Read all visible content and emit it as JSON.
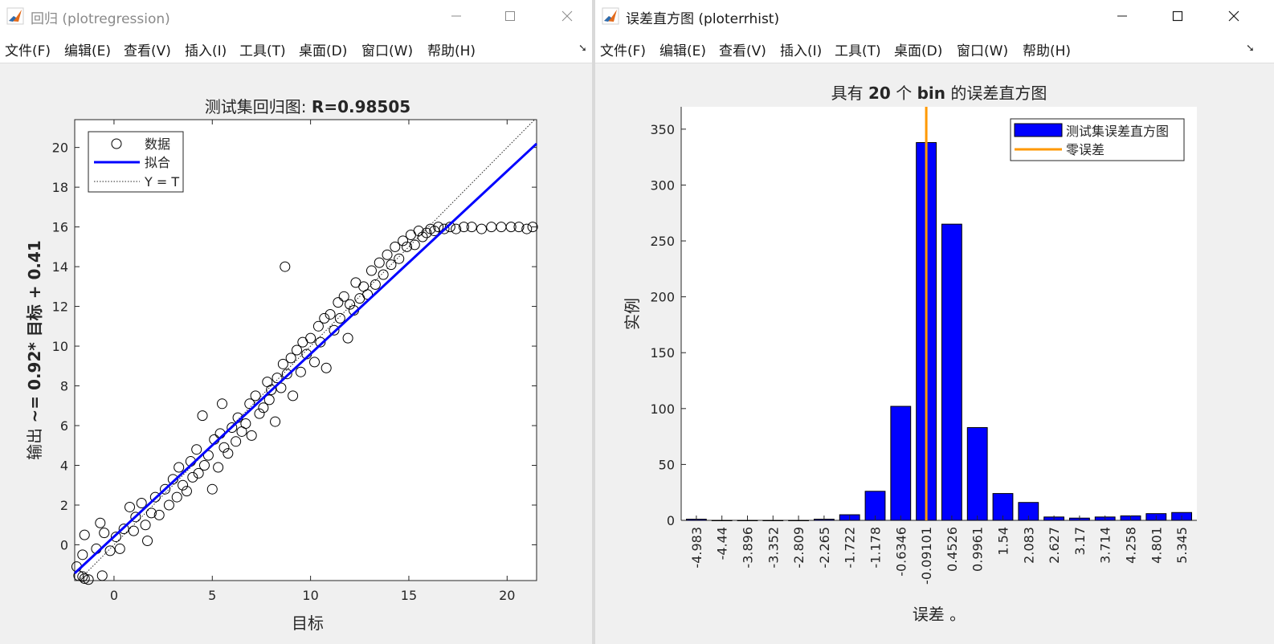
{
  "left_window": {
    "title": "回归 (plotregression)",
    "menu": [
      "文件(F)",
      "编辑(E)",
      "查看(V)",
      "插入(I)",
      "工具(T)",
      "桌面(D)",
      "窗口(W)",
      "帮助(H)"
    ],
    "window_controls": [
      "minimize-icon",
      "maximize-icon",
      "close-icon"
    ],
    "chart_data": {
      "type": "scatter",
      "title_prefix": "测试集回归图: ",
      "title_value": "R=0.98505",
      "xlabel": "目标",
      "ylabel_prefix": "输出 ",
      "ylabel_value": "~= 0.92* 目标 + 0.41",
      "xlim": [
        -2,
        21.5
      ],
      "ylim": [
        -1.8,
        21.4
      ],
      "xticks": [
        0,
        5,
        10,
        15,
        20
      ],
      "yticks": [
        0,
        2,
        4,
        6,
        8,
        10,
        12,
        14,
        16,
        18,
        20
      ],
      "legend": {
        "position": "top-left",
        "entries": [
          "数据",
          "拟合",
          "Y = T"
        ]
      },
      "fit": {
        "slope": 0.92,
        "intercept": 0.41
      },
      "series_style": {
        "data_marker": "circle",
        "fit_color": "#0000ff",
        "identity_color": "#262626"
      },
      "points": [
        [
          -1.9,
          -1.1
        ],
        [
          -1.8,
          -1.55
        ],
        [
          -1.6,
          -1.6
        ],
        [
          -1.5,
          -1.7
        ],
        [
          -1.3,
          -1.75
        ],
        [
          -0.6,
          -1.55
        ],
        [
          -1.6,
          -0.5
        ],
        [
          -1.5,
          0.5
        ],
        [
          -0.7,
          1.1
        ],
        [
          -0.5,
          0.6
        ],
        [
          -0.9,
          -0.2
        ],
        [
          -0.2,
          -0.3
        ],
        [
          0.1,
          0.4
        ],
        [
          0.3,
          -0.2
        ],
        [
          0.5,
          0.8
        ],
        [
          0.8,
          1.9
        ],
        [
          1.0,
          0.7
        ],
        [
          1.1,
          1.4
        ],
        [
          1.4,
          2.1
        ],
        [
          1.6,
          1.0
        ],
        [
          1.7,
          0.2
        ],
        [
          1.9,
          1.6
        ],
        [
          2.1,
          2.4
        ],
        [
          2.3,
          1.5
        ],
        [
          2.6,
          2.8
        ],
        [
          2.8,
          2.0
        ],
        [
          3.0,
          3.3
        ],
        [
          3.2,
          2.4
        ],
        [
          3.3,
          3.9
        ],
        [
          3.5,
          3.0
        ],
        [
          3.7,
          2.7
        ],
        [
          3.9,
          4.2
        ],
        [
          4.0,
          3.4
        ],
        [
          4.2,
          4.8
        ],
        [
          4.3,
          3.6
        ],
        [
          4.5,
          6.5
        ],
        [
          4.6,
          4.0
        ],
        [
          4.8,
          4.5
        ],
        [
          5.0,
          2.8
        ],
        [
          5.1,
          5.3
        ],
        [
          5.3,
          3.9
        ],
        [
          5.4,
          5.6
        ],
        [
          5.5,
          7.1
        ],
        [
          5.6,
          4.9
        ],
        [
          5.8,
          4.6
        ],
        [
          6.0,
          5.9
        ],
        [
          6.2,
          5.2
        ],
        [
          6.3,
          6.4
        ],
        [
          6.5,
          5.7
        ],
        [
          6.7,
          6.1
        ],
        [
          6.9,
          7.1
        ],
        [
          7.0,
          5.5
        ],
        [
          7.2,
          7.5
        ],
        [
          7.4,
          6.6
        ],
        [
          7.6,
          6.9
        ],
        [
          7.8,
          8.2
        ],
        [
          7.9,
          7.3
        ],
        [
          8.0,
          7.8
        ],
        [
          8.2,
          6.2
        ],
        [
          8.3,
          8.4
        ],
        [
          8.5,
          7.9
        ],
        [
          8.6,
          9.1
        ],
        [
          8.7,
          14.0
        ],
        [
          8.8,
          8.6
        ],
        [
          9.0,
          9.4
        ],
        [
          9.1,
          7.5
        ],
        [
          9.3,
          9.8
        ],
        [
          9.5,
          8.7
        ],
        [
          9.6,
          10.2
        ],
        [
          9.8,
          9.6
        ],
        [
          10.0,
          10.4
        ],
        [
          10.2,
          9.2
        ],
        [
          10.4,
          11.0
        ],
        [
          10.5,
          10.2
        ],
        [
          10.7,
          11.4
        ],
        [
          10.8,
          8.9
        ],
        [
          11.0,
          11.6
        ],
        [
          11.2,
          10.8
        ],
        [
          11.4,
          12.2
        ],
        [
          11.5,
          11.4
        ],
        [
          11.7,
          12.5
        ],
        [
          11.9,
          10.4
        ],
        [
          12.0,
          12.1
        ],
        [
          12.2,
          11.8
        ],
        [
          12.3,
          13.2
        ],
        [
          12.5,
          12.4
        ],
        [
          12.7,
          13.0
        ],
        [
          12.9,
          12.6
        ],
        [
          13.1,
          13.8
        ],
        [
          13.3,
          13.1
        ],
        [
          13.5,
          14.2
        ],
        [
          13.7,
          13.6
        ],
        [
          13.9,
          14.6
        ],
        [
          14.1,
          14.1
        ],
        [
          14.3,
          15.0
        ],
        [
          14.5,
          14.4
        ],
        [
          14.7,
          15.3
        ],
        [
          14.9,
          15.0
        ],
        [
          15.1,
          15.6
        ],
        [
          15.3,
          15.1
        ],
        [
          15.5,
          15.8
        ],
        [
          15.7,
          15.5
        ],
        [
          15.9,
          15.7
        ],
        [
          16.1,
          15.9
        ],
        [
          16.3,
          15.8
        ],
        [
          16.5,
          16.0
        ],
        [
          16.8,
          15.9
        ],
        [
          17.1,
          16.0
        ],
        [
          17.4,
          15.9
        ],
        [
          17.8,
          16.0
        ],
        [
          18.2,
          16.0
        ],
        [
          18.7,
          15.9
        ],
        [
          19.2,
          16.0
        ],
        [
          19.7,
          16.0
        ],
        [
          20.2,
          16.0
        ],
        [
          20.6,
          16.0
        ],
        [
          21.0,
          15.9
        ],
        [
          21.3,
          16.0
        ]
      ]
    }
  },
  "right_window": {
    "title": "误差直方图 (ploterrhist)",
    "menu": [
      "文件(F)",
      "编辑(E)",
      "查看(V)",
      "插入(I)",
      "工具(T)",
      "桌面(D)",
      "窗口(W)",
      "帮助(H)"
    ],
    "window_controls": [
      "minimize-icon",
      "maximize-icon",
      "close-icon"
    ],
    "chart_data": {
      "type": "bar",
      "title_prefix": "具有 ",
      "title_number": "20",
      "title_middle": " 个 ",
      "title_bin": "bin",
      "title_suffix": " 的误差直方图",
      "xlabel": "误差 。",
      "ylabel": "实例",
      "ylim": [
        0,
        370
      ],
      "yticks": [
        0,
        50,
        100,
        150,
        200,
        250,
        300,
        350
      ],
      "categories": [
        "-4.983",
        "-4.44",
        "-3.896",
        "-3.352",
        "-2.809",
        "-2.265",
        "-1.722",
        "-1.178",
        "-0.6346",
        "-0.09101",
        "0.4526",
        "0.9961",
        "1.54",
        "2.083",
        "2.627",
        "3.17",
        "3.714",
        "4.258",
        "4.801",
        "5.345"
      ],
      "values": [
        1,
        0,
        0,
        0,
        0,
        1,
        5,
        26,
        102,
        338,
        265,
        83,
        24,
        16,
        3,
        2,
        3,
        4,
        6,
        7
      ],
      "zero_error_position": 9.0,
      "bar_color": "#0000ff",
      "zero_line_color": "#ff9900",
      "legend": {
        "position": "top-right",
        "entries": [
          "测试集误差直方图",
          "零误差"
        ]
      }
    }
  }
}
